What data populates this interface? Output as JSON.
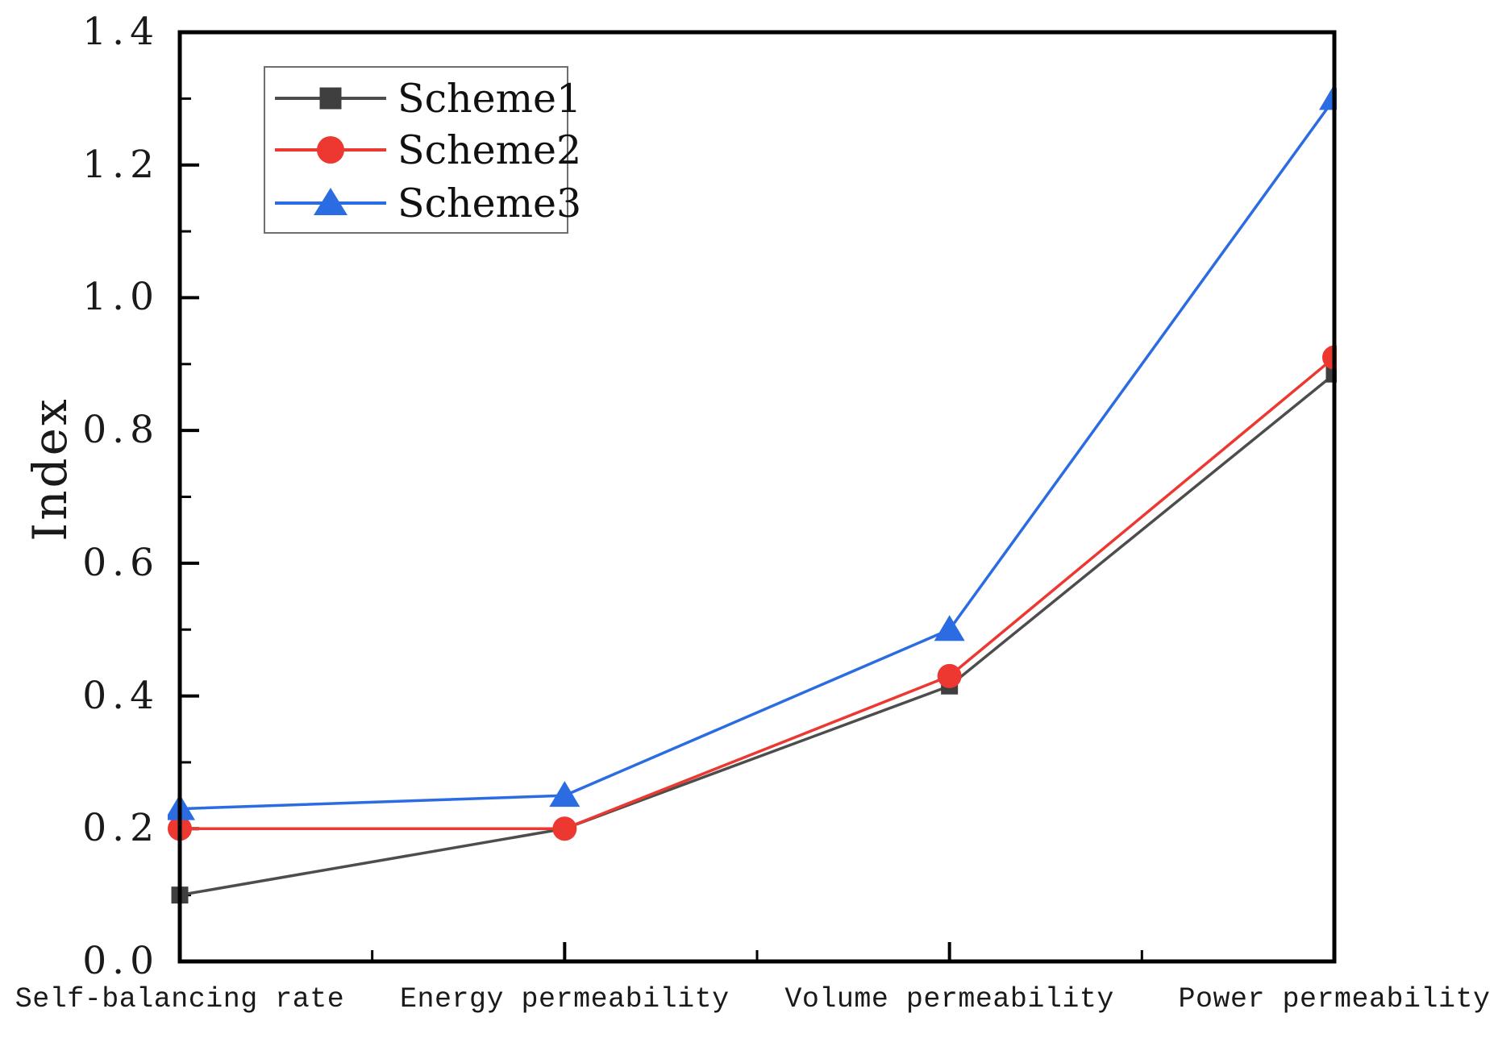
{
  "chart_data": {
    "type": "line",
    "title": "",
    "xlabel": "",
    "ylabel": "Index",
    "categories": [
      "Self-balancing rate",
      "Energy permeability",
      "Volume permeability",
      "Power permeability"
    ],
    "series": [
      {
        "name": "Scheme1",
        "color": "#4d4d4d",
        "marker_color": "#3f3f3f",
        "marker": "square",
        "values": [
          0.1,
          0.2,
          0.415,
          0.885
        ]
      },
      {
        "name": "Scheme2",
        "color": "#ed3832",
        "marker_color": "#ed3832",
        "marker": "circle",
        "values": [
          0.2,
          0.2,
          0.43,
          0.91
        ]
      },
      {
        "name": "Scheme3",
        "color": "#2b6ce2",
        "marker_color": "#2b6ce2",
        "marker": "triangle",
        "values": [
          0.23,
          0.25,
          0.5,
          1.3
        ]
      }
    ],
    "ylim": [
      0.0,
      1.4
    ],
    "ytick_step": 0.2,
    "ytick_minor_step": 0.1,
    "ytick_labels": [
      "0.0",
      "0.2",
      "0.4",
      "0.6",
      "0.8",
      "1.0",
      "1.2",
      "1.4"
    ],
    "grid": "off",
    "legend_position": "upper-left",
    "axis_color": "#000000"
  }
}
